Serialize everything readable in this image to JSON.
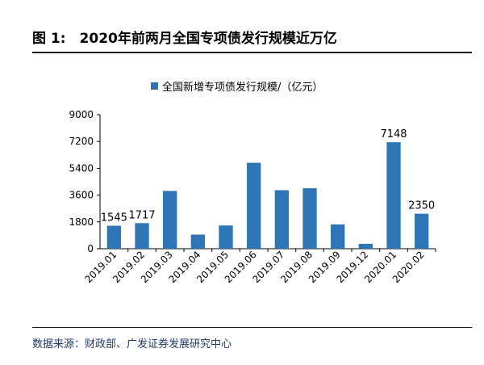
{
  "figure": {
    "title": "图 1:　2020年前两月全国专项债发行规模近万亿",
    "source": "数据来源：财政部、广发证券发展研究中心"
  },
  "colors": {
    "bar": "#2e75b6",
    "axis": "#000000"
  },
  "chart_data": {
    "type": "bar",
    "categories": [
      "2019.01",
      "2019.02",
      "2019.03",
      "2019.04",
      "2019.05",
      "2019.06",
      "2019.07",
      "2019.08",
      "2019.09",
      "2019.12",
      "2020.01",
      "2020.02"
    ],
    "series": [
      {
        "name": "全国新增专项债发行规模/（亿元）",
        "values": [
          1545,
          1717,
          3880,
          950,
          1560,
          5770,
          3930,
          4060,
          1630,
          330,
          7148,
          2350
        ]
      }
    ],
    "data_labels": [
      "1545",
      "1717",
      "",
      "",
      "",
      "",
      "",
      "",
      "",
      "",
      "7148",
      "2350"
    ],
    "ylim": [
      0,
      9000
    ],
    "yticks": [
      "0",
      "1800",
      "3600",
      "5400",
      "7200",
      "9000"
    ],
    "grid": false,
    "legend_position": "top"
  }
}
